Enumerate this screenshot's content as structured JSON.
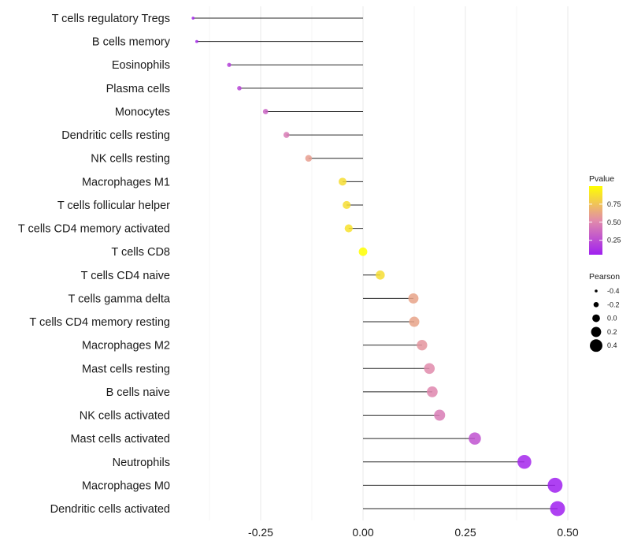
{
  "chart_data": {
    "type": "lollipop",
    "title": "",
    "xlabel": "",
    "ylabel": "",
    "xlim": [
      -0.43,
      0.51
    ],
    "x_ticks": [
      -0.25,
      0.0,
      0.25,
      0.5
    ],
    "x_tick_labels": [
      "-0.25",
      "0.00",
      "0.25",
      "0.50"
    ],
    "grid": true,
    "categories": [
      "T cells regulatory  Tregs",
      "B cells memory",
      "Eosinophils",
      "Plasma cells",
      "Monocytes",
      "Dendritic cells resting",
      "NK cells resting",
      "Macrophages M1",
      "T cells follicular helper",
      "T cells CD4 memory activated",
      "T cells CD8",
      "T cells CD4 naive",
      "T cells gamma delta",
      "T cells CD4 memory resting",
      "Macrophages M2",
      "Mast cells resting",
      "B cells naive",
      "NK cells activated",
      "Mast cells activated",
      "Neutrophils",
      "Macrophages M0",
      "Dendritic cells activated"
    ],
    "series": [
      {
        "name": "Pearson",
        "values": [
          -0.415,
          -0.406,
          -0.327,
          -0.302,
          -0.238,
          -0.187,
          -0.133,
          -0.05,
          -0.04,
          -0.035,
          0.0,
          0.042,
          0.123,
          0.125,
          0.144,
          0.162,
          0.169,
          0.187,
          0.273,
          0.394,
          0.469,
          0.475
        ]
      },
      {
        "name": "Pvalue",
        "values": [
          0.08,
          0.1,
          0.2,
          0.22,
          0.35,
          0.45,
          0.6,
          0.86,
          0.86,
          0.88,
          1.0,
          0.86,
          0.62,
          0.62,
          0.56,
          0.52,
          0.5,
          0.45,
          0.27,
          0.08,
          0.04,
          0.03
        ]
      }
    ],
    "legends": [
      {
        "title": "Pvalue",
        "type": "colorbar",
        "range": [
          0.05,
          1.0
        ],
        "ticks": [
          0.25,
          0.5,
          0.75
        ],
        "tick_labels": [
          "0.25",
          "0.50",
          "0.75"
        ],
        "low_color": "#A020F0",
        "high_color": "#FFFF00",
        "position": "right"
      },
      {
        "title": "Pearson",
        "type": "size",
        "values": [
          -0.4,
          -0.2,
          0.0,
          0.2,
          0.4
        ],
        "labels": [
          "-0.4",
          "-0.2",
          "0.0",
          "0.2",
          "0.4"
        ],
        "position": "right"
      }
    ]
  },
  "colors": {
    "low": "#A020F0",
    "high": "#FFFF00",
    "grid": "#ebebeb",
    "stem": "#000000"
  }
}
